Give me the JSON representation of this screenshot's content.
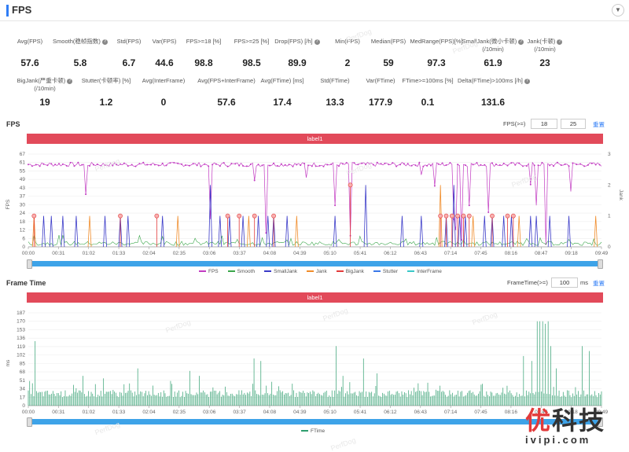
{
  "header": {
    "title": "FPS",
    "collapse_icon": "chevron-down-icon"
  },
  "stats_row1": [
    {
      "label": "Avg(FPS)",
      "value": "57.6",
      "help": false
    },
    {
      "label": "Smooth(稳帧指数)",
      "value": "5.8",
      "help": true
    },
    {
      "label": "Std(FPS)",
      "value": "6.7",
      "help": false
    },
    {
      "label": "Var(FPS)",
      "value": "44.6",
      "help": false
    },
    {
      "label": "FPS>=18 [%]",
      "value": "98.8",
      "help": false
    },
    {
      "label": "FPS>=25 [%]",
      "value": "98.5",
      "help": false
    },
    {
      "label": "Drop(FPS) [/h]",
      "value": "89.9",
      "help": true
    },
    {
      "label": "Min(FPS)",
      "value": "2",
      "help": false
    },
    {
      "label": "Median(FPS)",
      "value": "59",
      "help": false
    },
    {
      "label": "MedRange(FPS)[%]",
      "value": "97.3",
      "help": false
    },
    {
      "label": "SmallJank(微小卡顿)",
      "label2": "(/10min)",
      "value": "61.9",
      "help": true
    },
    {
      "label": "Jank(卡顿)",
      "label2": "(/10min)",
      "value": "23",
      "help": true
    }
  ],
  "stats_row2": [
    {
      "label": "BigJank(严重卡顿)",
      "label2": "(/10min)",
      "value": "19",
      "help": true
    },
    {
      "label": "Stutter(卡顿率) [%]",
      "value": "1.2",
      "help": false
    },
    {
      "label": "Avg(InterFrame)",
      "value": "0",
      "help": false
    },
    {
      "label": "Avg(FPS+InterFrame)",
      "value": "57.6",
      "help": false
    },
    {
      "label": "Avg(FTime) [ms]",
      "value": "17.4",
      "help": false
    },
    {
      "label": "Std(FTime)",
      "value": "13.3",
      "help": false
    },
    {
      "label": "Var(FTime)",
      "value": "177.9",
      "help": false
    },
    {
      "label": "FTime>=100ms [%]",
      "value": "0.1",
      "help": false
    },
    {
      "label": "Delta(FTime)>100ms [/h]",
      "value": "131.6",
      "help": true
    }
  ],
  "fps_panel": {
    "title": "FPS",
    "threshold_label": "FPS(>=)",
    "threshold_values": [
      "18",
      "25"
    ],
    "reset_label": "重置",
    "label_bar": "label1",
    "y_axis_title": "FPS",
    "y2_axis_title": "Jank",
    "y_ticks": [
      "67",
      "61",
      "55",
      "49",
      "43",
      "37",
      "30",
      "24",
      "18",
      "12",
      "6",
      "0"
    ],
    "y2_ticks": [
      "3",
      "2",
      "1",
      "0"
    ],
    "x_ticks": [
      "00:00",
      "00:31",
      "01:02",
      "01:33",
      "02:04",
      "02:35",
      "03:06",
      "03:37",
      "04:08",
      "04:39",
      "05:10",
      "05:41",
      "06:12",
      "06:43",
      "07:14",
      "07:45",
      "08:16",
      "08:47",
      "09:18",
      "09:49"
    ],
    "legend": [
      {
        "name": "FPS",
        "color": "#c23ac2"
      },
      {
        "name": "Smooth",
        "color": "#3aa64a"
      },
      {
        "name": "SmallJank",
        "color": "#3a3ac8"
      },
      {
        "name": "Jank",
        "color": "#f08c2a"
      },
      {
        "name": "BigJank",
        "color": "#e23a3a"
      },
      {
        "name": "Stutter",
        "color": "#3a78e8"
      },
      {
        "name": "InterFrame",
        "color": "#3ac8c8"
      }
    ]
  },
  "ftime_panel": {
    "title": "Frame Time",
    "threshold_label": "FrameTime(>=)",
    "threshold_value": "100",
    "unit": "ms",
    "reset_label": "重置",
    "label_bar": "label1",
    "y_axis_title": "ms",
    "y_ticks": [
      "187",
      "170",
      "153",
      "136",
      "119",
      "102",
      "85",
      "68",
      "51",
      "34",
      "17",
      "0"
    ],
    "x_ticks": [
      "00:00",
      "00:31",
      "01:02",
      "01:33",
      "02:04",
      "02:35",
      "03:06",
      "03:37",
      "04:08",
      "04:39",
      "05:10",
      "05:41",
      "06:12",
      "06:43",
      "07:14",
      "07:45",
      "08:16",
      "08:47",
      "09:18",
      "09:49"
    ],
    "legend": [
      {
        "name": "FTime",
        "color": "#2e9e6e"
      }
    ]
  },
  "watermark": "PerfDog",
  "brand": {
    "name_red": "优",
    "name_rest": "科技",
    "url": "ivipi.com"
  },
  "chart_data": [
    {
      "type": "line",
      "title": "FPS",
      "ylabel": "FPS",
      "ylim": [
        0,
        67
      ],
      "y2label": "Jank",
      "y2lim": [
        0,
        3
      ],
      "x": [
        "00:00",
        "00:31",
        "01:02",
        "01:33",
        "02:04",
        "02:35",
        "03:06",
        "03:37",
        "04:08",
        "04:39",
        "05:10",
        "05:41",
        "06:12",
        "06:43",
        "07:14",
        "07:45",
        "08:16",
        "08:47",
        "09:18",
        "09:49"
      ],
      "series": [
        {
          "name": "FPS",
          "values": [
            59,
            59,
            60,
            59,
            60,
            60,
            58,
            57,
            59,
            60,
            59,
            59,
            60,
            59,
            45,
            58,
            59,
            60,
            59,
            60
          ]
        },
        {
          "name": "Smooth",
          "values": [
            2,
            3,
            2,
            4,
            2,
            2,
            3,
            5,
            2,
            2,
            2,
            2,
            3,
            2,
            8,
            3,
            2,
            2,
            2,
            2
          ]
        },
        {
          "name": "SmallJank",
          "values": [
            0,
            1,
            0,
            1,
            0,
            0,
            1,
            2,
            1,
            0,
            0,
            0,
            1,
            1,
            2,
            1,
            1,
            0,
            0,
            1
          ]
        },
        {
          "name": "Jank",
          "values": [
            0,
            0,
            0,
            1,
            1,
            0,
            0,
            1,
            1,
            1,
            0,
            2,
            0,
            0,
            1,
            1,
            1,
            0,
            0,
            0
          ]
        },
        {
          "name": "BigJank",
          "values": [
            1,
            0,
            0,
            1,
            1,
            0,
            0,
            1,
            1,
            1,
            0,
            2,
            0,
            0,
            1,
            0,
            1,
            0,
            0,
            0
          ]
        },
        {
          "name": "Stutter",
          "values": [
            0,
            0,
            0,
            0,
            0,
            0,
            0,
            0,
            0,
            0,
            0,
            0,
            0,
            0,
            0,
            0,
            0,
            0,
            0,
            0
          ]
        },
        {
          "name": "InterFrame",
          "values": [
            0,
            0,
            0,
            0,
            0,
            0,
            0,
            0,
            0,
            0,
            0,
            0,
            0,
            0,
            0,
            0,
            0,
            0,
            0,
            0
          ]
        }
      ]
    },
    {
      "type": "bar",
      "title": "Frame Time",
      "ylabel": "ms",
      "ylim": [
        0,
        187
      ],
      "x": [
        "00:00",
        "00:31",
        "01:02",
        "01:33",
        "02:04",
        "02:35",
        "03:06",
        "03:37",
        "04:08",
        "04:39",
        "05:10",
        "05:41",
        "06:12",
        "06:43",
        "07:14",
        "07:45",
        "08:16",
        "08:47",
        "09:18",
        "09:49"
      ],
      "series": [
        {
          "name": "FTime",
          "values": [
            130,
            60,
            70,
            80,
            90,
            50,
            60,
            120,
            75,
            60,
            40,
            110,
            50,
            60,
            170,
            70,
            120,
            40,
            35,
            50
          ]
        }
      ]
    }
  ]
}
